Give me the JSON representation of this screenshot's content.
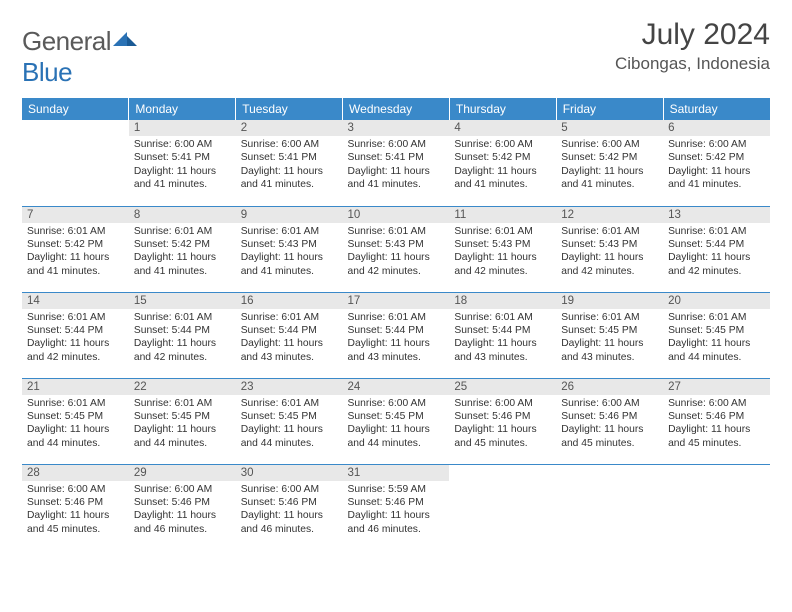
{
  "logo": {
    "word1": "General",
    "word2": "Blue"
  },
  "header": {
    "title": "July 2024",
    "location": "Cibongas, Indonesia"
  },
  "colors": {
    "header_bg": "#3a89c9",
    "header_text": "#ffffff",
    "daynum_bg": "#e8e8e8",
    "row_border": "#3a89c9",
    "logo_blue": "#2a72b5",
    "logo_gray": "#5a5a5a"
  },
  "weekdays": [
    "Sunday",
    "Monday",
    "Tuesday",
    "Wednesday",
    "Thursday",
    "Friday",
    "Saturday"
  ],
  "weeks": [
    [
      {
        "n": "",
        "sr": "",
        "ss": "",
        "dl": ""
      },
      {
        "n": "1",
        "sr": "6:00 AM",
        "ss": "5:41 PM",
        "dl": "11 hours and 41 minutes."
      },
      {
        "n": "2",
        "sr": "6:00 AM",
        "ss": "5:41 PM",
        "dl": "11 hours and 41 minutes."
      },
      {
        "n": "3",
        "sr": "6:00 AM",
        "ss": "5:41 PM",
        "dl": "11 hours and 41 minutes."
      },
      {
        "n": "4",
        "sr": "6:00 AM",
        "ss": "5:42 PM",
        "dl": "11 hours and 41 minutes."
      },
      {
        "n": "5",
        "sr": "6:00 AM",
        "ss": "5:42 PM",
        "dl": "11 hours and 41 minutes."
      },
      {
        "n": "6",
        "sr": "6:00 AM",
        "ss": "5:42 PM",
        "dl": "11 hours and 41 minutes."
      }
    ],
    [
      {
        "n": "7",
        "sr": "6:01 AM",
        "ss": "5:42 PM",
        "dl": "11 hours and 41 minutes."
      },
      {
        "n": "8",
        "sr": "6:01 AM",
        "ss": "5:42 PM",
        "dl": "11 hours and 41 minutes."
      },
      {
        "n": "9",
        "sr": "6:01 AM",
        "ss": "5:43 PM",
        "dl": "11 hours and 41 minutes."
      },
      {
        "n": "10",
        "sr": "6:01 AM",
        "ss": "5:43 PM",
        "dl": "11 hours and 42 minutes."
      },
      {
        "n": "11",
        "sr": "6:01 AM",
        "ss": "5:43 PM",
        "dl": "11 hours and 42 minutes."
      },
      {
        "n": "12",
        "sr": "6:01 AM",
        "ss": "5:43 PM",
        "dl": "11 hours and 42 minutes."
      },
      {
        "n": "13",
        "sr": "6:01 AM",
        "ss": "5:44 PM",
        "dl": "11 hours and 42 minutes."
      }
    ],
    [
      {
        "n": "14",
        "sr": "6:01 AM",
        "ss": "5:44 PM",
        "dl": "11 hours and 42 minutes."
      },
      {
        "n": "15",
        "sr": "6:01 AM",
        "ss": "5:44 PM",
        "dl": "11 hours and 42 minutes."
      },
      {
        "n": "16",
        "sr": "6:01 AM",
        "ss": "5:44 PM",
        "dl": "11 hours and 43 minutes."
      },
      {
        "n": "17",
        "sr": "6:01 AM",
        "ss": "5:44 PM",
        "dl": "11 hours and 43 minutes."
      },
      {
        "n": "18",
        "sr": "6:01 AM",
        "ss": "5:44 PM",
        "dl": "11 hours and 43 minutes."
      },
      {
        "n": "19",
        "sr": "6:01 AM",
        "ss": "5:45 PM",
        "dl": "11 hours and 43 minutes."
      },
      {
        "n": "20",
        "sr": "6:01 AM",
        "ss": "5:45 PM",
        "dl": "11 hours and 44 minutes."
      }
    ],
    [
      {
        "n": "21",
        "sr": "6:01 AM",
        "ss": "5:45 PM",
        "dl": "11 hours and 44 minutes."
      },
      {
        "n": "22",
        "sr": "6:01 AM",
        "ss": "5:45 PM",
        "dl": "11 hours and 44 minutes."
      },
      {
        "n": "23",
        "sr": "6:01 AM",
        "ss": "5:45 PM",
        "dl": "11 hours and 44 minutes."
      },
      {
        "n": "24",
        "sr": "6:00 AM",
        "ss": "5:45 PM",
        "dl": "11 hours and 44 minutes."
      },
      {
        "n": "25",
        "sr": "6:00 AM",
        "ss": "5:46 PM",
        "dl": "11 hours and 45 minutes."
      },
      {
        "n": "26",
        "sr": "6:00 AM",
        "ss": "5:46 PM",
        "dl": "11 hours and 45 minutes."
      },
      {
        "n": "27",
        "sr": "6:00 AM",
        "ss": "5:46 PM",
        "dl": "11 hours and 45 minutes."
      }
    ],
    [
      {
        "n": "28",
        "sr": "6:00 AM",
        "ss": "5:46 PM",
        "dl": "11 hours and 45 minutes."
      },
      {
        "n": "29",
        "sr": "6:00 AM",
        "ss": "5:46 PM",
        "dl": "11 hours and 46 minutes."
      },
      {
        "n": "30",
        "sr": "6:00 AM",
        "ss": "5:46 PM",
        "dl": "11 hours and 46 minutes."
      },
      {
        "n": "31",
        "sr": "5:59 AM",
        "ss": "5:46 PM",
        "dl": "11 hours and 46 minutes."
      },
      {
        "n": "",
        "sr": "",
        "ss": "",
        "dl": ""
      },
      {
        "n": "",
        "sr": "",
        "ss": "",
        "dl": ""
      },
      {
        "n": "",
        "sr": "",
        "ss": "",
        "dl": ""
      }
    ]
  ],
  "labels": {
    "sunrise": "Sunrise:",
    "sunset": "Sunset:",
    "daylight": "Daylight:"
  }
}
